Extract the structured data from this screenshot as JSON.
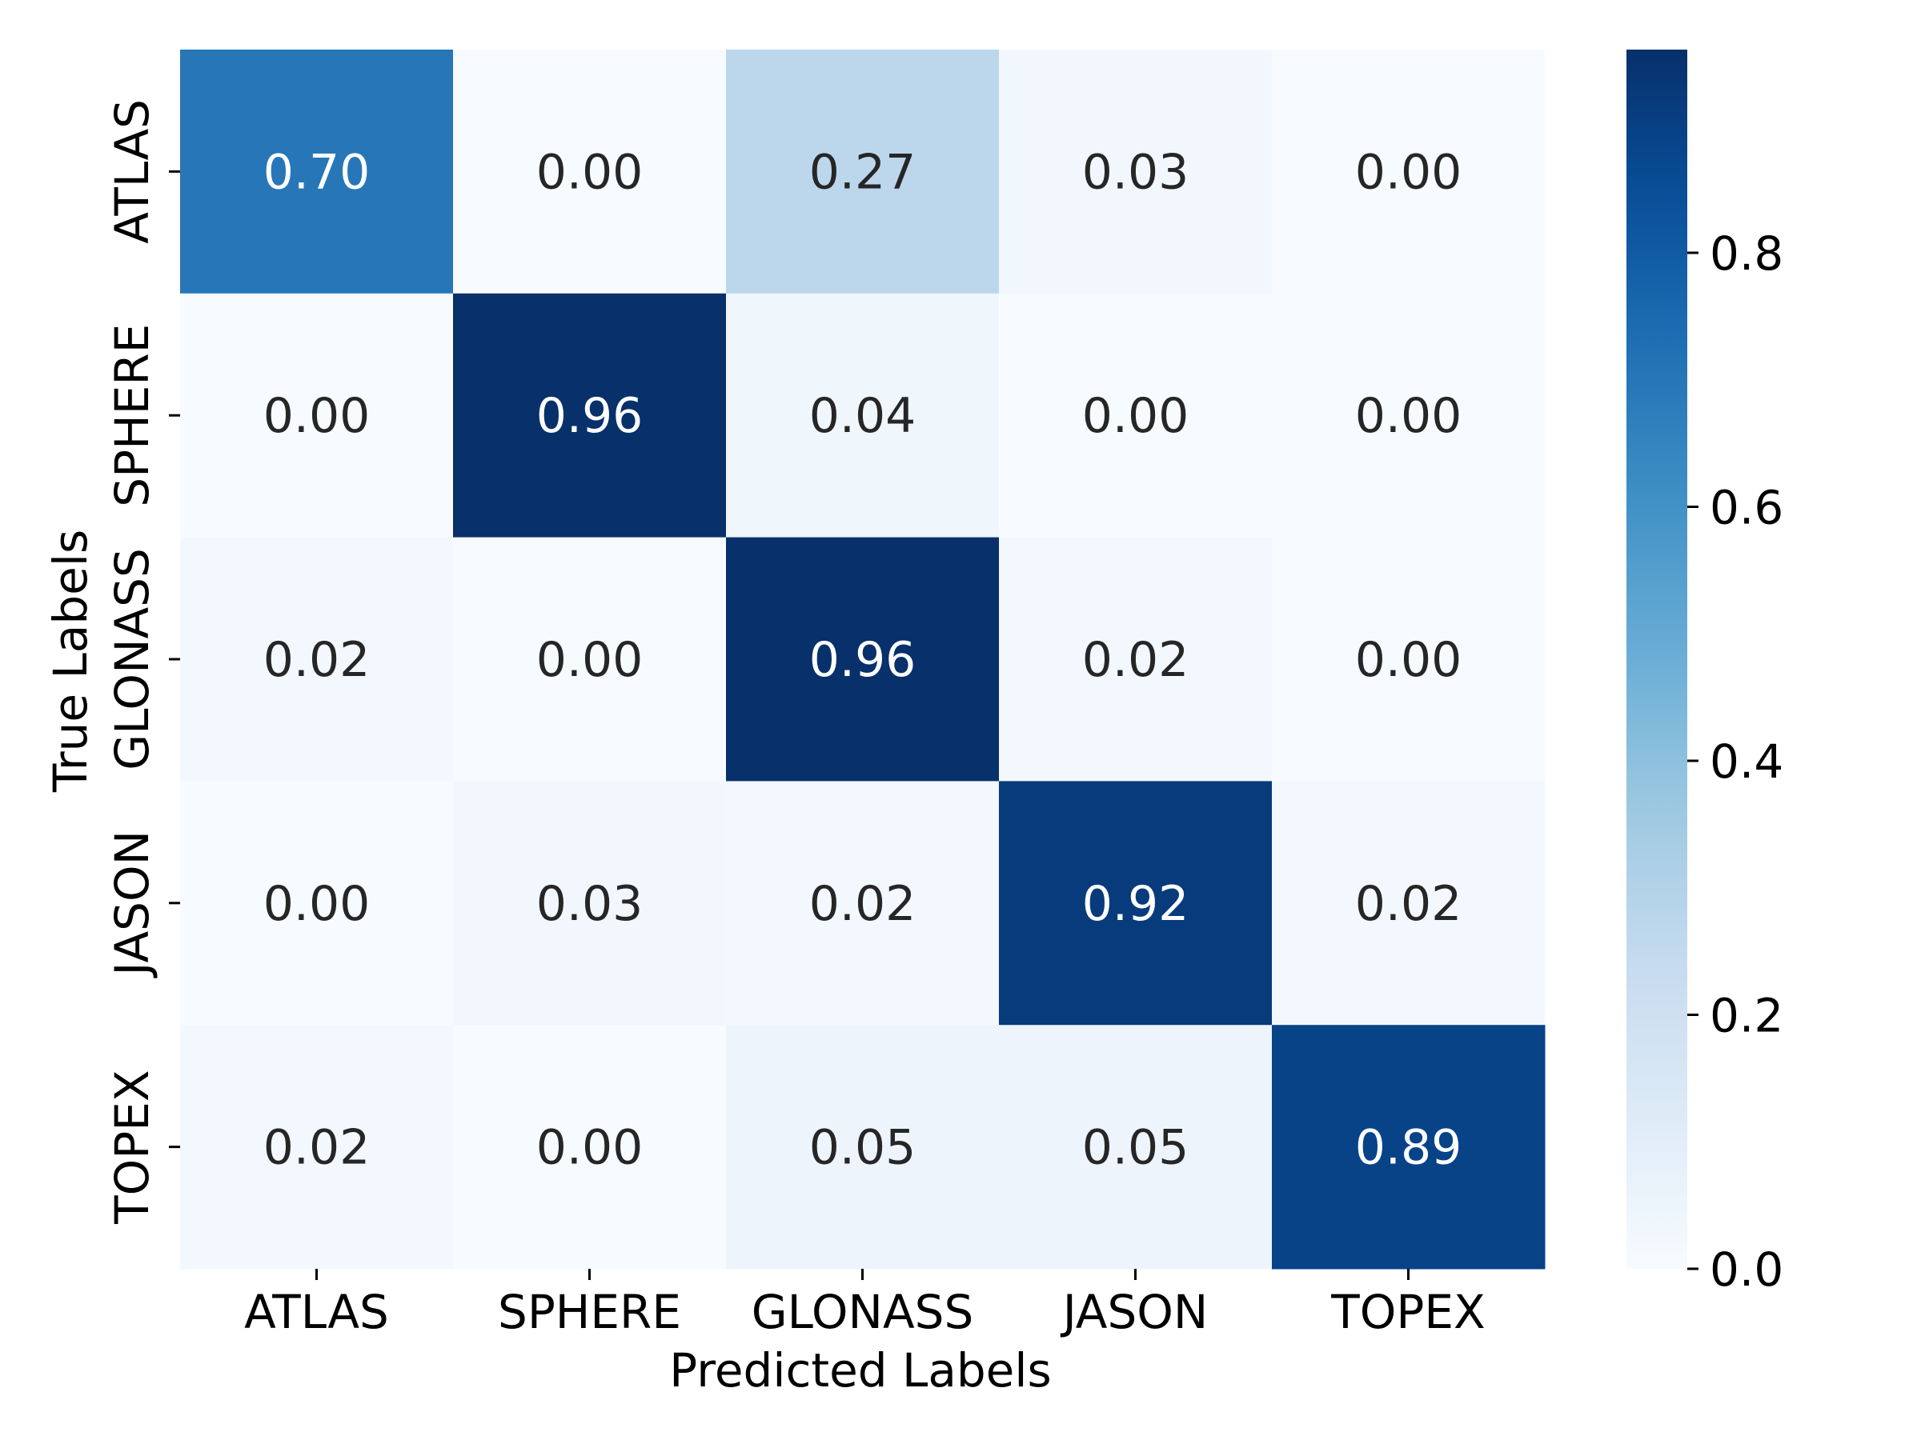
{
  "chart_data": {
    "type": "heatmap",
    "title": "",
    "xlabel": "Predicted Labels",
    "ylabel": "True Labels",
    "x_categories": [
      "ATLAS",
      "SPHERE",
      "GLONASS",
      "JASON",
      "TOPEX"
    ],
    "y_categories": [
      "ATLAS",
      "SPHERE",
      "GLONASS",
      "JASON",
      "TOPEX"
    ],
    "values": [
      [
        0.7,
        0.0,
        0.27,
        0.03,
        0.0
      ],
      [
        0.0,
        0.96,
        0.04,
        0.0,
        0.0
      ],
      [
        0.02,
        0.0,
        0.96,
        0.02,
        0.0
      ],
      [
        0.0,
        0.03,
        0.02,
        0.92,
        0.02
      ],
      [
        0.02,
        0.0,
        0.05,
        0.05,
        0.89
      ]
    ],
    "value_labels": [
      [
        "0.70",
        "0.00",
        "0.27",
        "0.03",
        "0.00"
      ],
      [
        "0.00",
        "0.96",
        "0.04",
        "0.00",
        "0.00"
      ],
      [
        "0.02",
        "0.00",
        "0.96",
        "0.02",
        "0.00"
      ],
      [
        "0.00",
        "0.03",
        "0.02",
        "0.92",
        "0.02"
      ],
      [
        "0.02",
        "0.00",
        "0.05",
        "0.05",
        "0.89"
      ]
    ],
    "colormap": "Blues",
    "color_range": [
      0.0,
      0.96
    ],
    "colorbar": {
      "ticks": [
        0.0,
        0.2,
        0.4,
        0.6,
        0.8
      ],
      "tick_labels": [
        "0.0",
        "0.2",
        "0.4",
        "0.6",
        "0.8"
      ]
    },
    "annotation_colors": {
      "dark": "#262626",
      "light": "#ffffff"
    },
    "grid": false
  }
}
